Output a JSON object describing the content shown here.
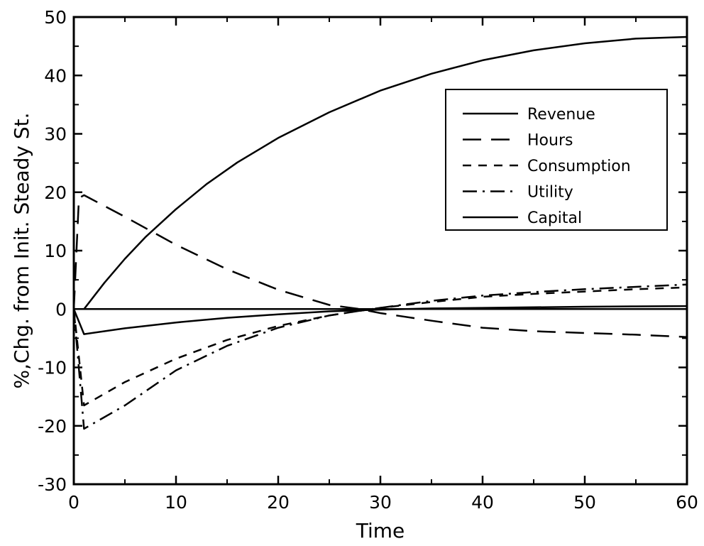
{
  "chart_data": {
    "type": "line",
    "title": "",
    "xlabel": "Time",
    "ylabel": "%,Chg. from Init. Steady St.",
    "xlim": [
      0,
      60
    ],
    "ylim": [
      -30,
      50
    ],
    "xticks": [
      0,
      10,
      20,
      30,
      40,
      50,
      60
    ],
    "yticks": [
      -30,
      -20,
      -10,
      0,
      10,
      20,
      30,
      40,
      50
    ],
    "ytick_labels": [
      "-30",
      "-20",
      "-10",
      "0",
      "10",
      "20",
      "30",
      "40",
      "50"
    ],
    "grid": false,
    "legend_position": "right",
    "series": [
      {
        "name": "Revenue",
        "style": "solid",
        "x": [
          1,
          3,
          5,
          7,
          10,
          13,
          16,
          20,
          25,
          30,
          35,
          40,
          45,
          50,
          55,
          60
        ],
        "y": [
          0,
          4.5,
          8.6,
          12.3,
          17.1,
          21.4,
          25.1,
          29.3,
          33.7,
          37.4,
          40.3,
          42.6,
          44.3,
          45.5,
          46.3,
          46.6
        ]
      },
      {
        "name": "Hours",
        "style": "dashed-long",
        "x": [
          0,
          0.5,
          1,
          5,
          10,
          15,
          20,
          25,
          28,
          30,
          35,
          40,
          45,
          50,
          55,
          60
        ],
        "y": [
          0,
          19,
          19.5,
          15.8,
          11,
          6.8,
          3.3,
          0.7,
          0,
          -0.7,
          -2,
          -3.2,
          -3.8,
          -4.1,
          -4.4,
          -4.8
        ]
      },
      {
        "name": "Consumption",
        "style": "dashed-short",
        "x": [
          0,
          1,
          5,
          10,
          15,
          20,
          25,
          28,
          30,
          35,
          40,
          45,
          50,
          55,
          60
        ],
        "y": [
          0,
          -16.5,
          -12.5,
          -8.5,
          -5.3,
          -2.9,
          -1.1,
          -0.3,
          0.2,
          1.2,
          2.1,
          2.6,
          3,
          3.4,
          3.7
        ]
      },
      {
        "name": "Utility",
        "style": "dash-dot",
        "x": [
          0,
          1,
          5,
          10,
          15,
          20,
          25,
          28,
          30,
          35,
          40,
          45,
          50,
          55,
          60
        ],
        "y": [
          0,
          -20.5,
          -16.5,
          -10.5,
          -6.3,
          -3.2,
          -1.1,
          -0.3,
          0.2,
          1.4,
          2.3,
          2.9,
          3.4,
          3.8,
          4.2
        ]
      },
      {
        "name": "Capital",
        "style": "solid",
        "x": [
          0,
          1,
          5,
          10,
          15,
          20,
          25,
          30,
          35,
          40,
          45,
          50,
          55,
          60
        ],
        "y": [
          0,
          -4.3,
          -3.3,
          -2.3,
          -1.5,
          -0.9,
          -0.4,
          -0.1,
          0.1,
          0.2,
          0.3,
          0.4,
          0.45,
          0.5
        ]
      }
    ],
    "reference_line": {
      "y": 0,
      "style": "solid"
    }
  }
}
